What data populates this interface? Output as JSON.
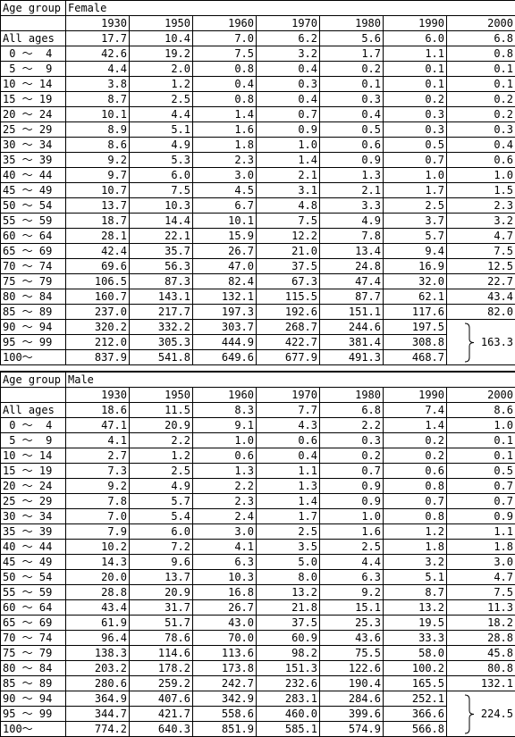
{
  "tables": [
    {
      "group_label": "Age group",
      "sex": "Female",
      "years": [
        "1930",
        "1950",
        "1960",
        "1970",
        "1980",
        "1990",
        "2000"
      ],
      "rows": [
        {
          "age": "All ages",
          "values": [
            "17.7",
            "10.4",
            "7.0",
            "6.2",
            "5.6",
            "6.0",
            "6.8"
          ]
        },
        {
          "age": " 0 ～  4",
          "values": [
            "42.6",
            "19.2",
            "7.5",
            "3.2",
            "1.7",
            "1.1",
            "0.8"
          ]
        },
        {
          "age": " 5 ～  9",
          "values": [
            "4.4",
            "2.0",
            "0.8",
            "0.4",
            "0.2",
            "0.1",
            "0.1"
          ]
        },
        {
          "age": "10 ～ 14",
          "values": [
            "3.8",
            "1.2",
            "0.4",
            "0.3",
            "0.1",
            "0.1",
            "0.1"
          ]
        },
        {
          "age": "15 ～ 19",
          "values": [
            "8.7",
            "2.5",
            "0.8",
            "0.4",
            "0.3",
            "0.2",
            "0.2"
          ]
        },
        {
          "age": "20 ～ 24",
          "values": [
            "10.1",
            "4.4",
            "1.4",
            "0.7",
            "0.4",
            "0.3",
            "0.2"
          ]
        },
        {
          "age": "25 ～ 29",
          "values": [
            "8.9",
            "5.1",
            "1.6",
            "0.9",
            "0.5",
            "0.3",
            "0.3"
          ]
        },
        {
          "age": "30 ～ 34",
          "values": [
            "8.6",
            "4.9",
            "1.8",
            "1.0",
            "0.6",
            "0.5",
            "0.4"
          ]
        },
        {
          "age": "35 ～ 39",
          "values": [
            "9.2",
            "5.3",
            "2.3",
            "1.4",
            "0.9",
            "0.7",
            "0.6"
          ]
        },
        {
          "age": "40 ～ 44",
          "values": [
            "9.7",
            "6.0",
            "3.0",
            "2.1",
            "1.3",
            "1.0",
            "1.0"
          ]
        },
        {
          "age": "45 ～ 49",
          "values": [
            "10.7",
            "7.5",
            "4.5",
            "3.1",
            "2.1",
            "1.7",
            "1.5"
          ]
        },
        {
          "age": "50 ～ 54",
          "values": [
            "13.7",
            "10.3",
            "6.7",
            "4.8",
            "3.3",
            "2.5",
            "2.3"
          ]
        },
        {
          "age": "55 ～ 59",
          "values": [
            "18.7",
            "14.4",
            "10.1",
            "7.5",
            "4.9",
            "3.7",
            "3.2"
          ]
        },
        {
          "age": "60 ～ 64",
          "values": [
            "28.1",
            "22.1",
            "15.9",
            "12.2",
            "7.8",
            "5.7",
            "4.7"
          ]
        },
        {
          "age": "65 ～ 69",
          "values": [
            "42.4",
            "35.7",
            "26.7",
            "21.0",
            "13.4",
            "9.4",
            "7.5"
          ]
        },
        {
          "age": "70 ～ 74",
          "values": [
            "69.6",
            "56.3",
            "47.0",
            "37.5",
            "24.8",
            "16.9",
            "12.5"
          ]
        },
        {
          "age": "75 ～ 79",
          "values": [
            "106.5",
            "87.3",
            "82.4",
            "67.3",
            "47.4",
            "32.0",
            "22.7"
          ]
        },
        {
          "age": "80 ～ 84",
          "values": [
            "160.7",
            "143.1",
            "132.1",
            "115.5",
            "87.7",
            "62.1",
            "43.4"
          ]
        },
        {
          "age": "85 ～ 89",
          "values": [
            "237.0",
            "217.7",
            "197.3",
            "192.6",
            "151.1",
            "117.6",
            "82.0"
          ]
        },
        {
          "age": "90 ～ 94",
          "values": [
            "320.2",
            "332.2",
            "303.7",
            "268.7",
            "244.6",
            "197.5"
          ]
        },
        {
          "age": "95 ～ 99",
          "values": [
            "212.0",
            "305.3",
            "444.9",
            "422.7",
            "381.4",
            "308.8"
          ]
        },
        {
          "age": "100～",
          "values": [
            "837.9",
            "541.8",
            "649.6",
            "677.9",
            "491.3",
            "468.7"
          ]
        }
      ],
      "merged_2000": "163.3"
    },
    {
      "group_label": "Age group",
      "sex": "Male",
      "years": [
        "1930",
        "1950",
        "1960",
        "1970",
        "1980",
        "1990",
        "2000"
      ],
      "rows": [
        {
          "age": "All ages",
          "values": [
            "18.6",
            "11.5",
            "8.3",
            "7.7",
            "6.8",
            "7.4",
            "8.6"
          ]
        },
        {
          "age": " 0 ～  4",
          "values": [
            "47.1",
            "20.9",
            "9.1",
            "4.3",
            "2.2",
            "1.4",
            "1.0"
          ]
        },
        {
          "age": " 5 ～  9",
          "values": [
            "4.1",
            "2.2",
            "1.0",
            "0.6",
            "0.3",
            "0.2",
            "0.1"
          ]
        },
        {
          "age": "10 ～ 14",
          "values": [
            "2.7",
            "1.2",
            "0.6",
            "0.4",
            "0.2",
            "0.2",
            "0.1"
          ]
        },
        {
          "age": "15 ～ 19",
          "values": [
            "7.3",
            "2.5",
            "1.3",
            "1.1",
            "0.7",
            "0.6",
            "0.5"
          ]
        },
        {
          "age": "20 ～ 24",
          "values": [
            "9.2",
            "4.9",
            "2.2",
            "1.3",
            "0.9",
            "0.8",
            "0.7"
          ]
        },
        {
          "age": "25 ～ 29",
          "values": [
            "7.8",
            "5.7",
            "2.3",
            "1.4",
            "0.9",
            "0.7",
            "0.7"
          ]
        },
        {
          "age": "30 ～ 34",
          "values": [
            "7.0",
            "5.4",
            "2.4",
            "1.7",
            "1.0",
            "0.8",
            "0.9"
          ]
        },
        {
          "age": "35 ～ 39",
          "values": [
            "7.9",
            "6.0",
            "3.0",
            "2.5",
            "1.6",
            "1.2",
            "1.1"
          ]
        },
        {
          "age": "40 ～ 44",
          "values": [
            "10.2",
            "7.2",
            "4.1",
            "3.5",
            "2.5",
            "1.8",
            "1.8"
          ]
        },
        {
          "age": "45 ～ 49",
          "values": [
            "14.3",
            "9.6",
            "6.3",
            "5.0",
            "4.4",
            "3.2",
            "3.0"
          ]
        },
        {
          "age": "50 ～ 54",
          "values": [
            "20.0",
            "13.7",
            "10.3",
            "8.0",
            "6.3",
            "5.1",
            "4.7"
          ]
        },
        {
          "age": "55 ～ 59",
          "values": [
            "28.8",
            "20.9",
            "16.8",
            "13.2",
            "9.2",
            "8.7",
            "7.5"
          ]
        },
        {
          "age": "60 ～ 64",
          "values": [
            "43.4",
            "31.7",
            "26.7",
            "21.8",
            "15.1",
            "13.2",
            "11.3"
          ]
        },
        {
          "age": "65 ～ 69",
          "values": [
            "61.9",
            "51.7",
            "43.0",
            "37.5",
            "25.3",
            "19.5",
            "18.2"
          ]
        },
        {
          "age": "70 ～ 74",
          "values": [
            "96.4",
            "78.6",
            "70.0",
            "60.9",
            "43.6",
            "33.3",
            "28.8"
          ]
        },
        {
          "age": "75 ～ 79",
          "values": [
            "138.3",
            "114.6",
            "113.6",
            "98.2",
            "75.5",
            "58.0",
            "45.8"
          ]
        },
        {
          "age": "80 ～ 84",
          "values": [
            "203.2",
            "178.2",
            "173.8",
            "151.3",
            "122.6",
            "100.2",
            "80.8"
          ]
        },
        {
          "age": "85 ～ 89",
          "values": [
            "280.6",
            "259.2",
            "242.7",
            "232.6",
            "190.4",
            "165.5",
            "132.1"
          ]
        },
        {
          "age": "90 ～ 94",
          "values": [
            "364.9",
            "407.6",
            "342.9",
            "283.1",
            "284.6",
            "252.1"
          ]
        },
        {
          "age": "95 ～ 99",
          "values": [
            "344.7",
            "421.7",
            "558.6",
            "460.0",
            "399.6",
            "366.6"
          ]
        },
        {
          "age": "100～",
          "values": [
            "774.2",
            "640.3",
            "851.9",
            "585.1",
            "574.9",
            "566.8"
          ]
        }
      ],
      "merged_2000": "224.5"
    }
  ]
}
